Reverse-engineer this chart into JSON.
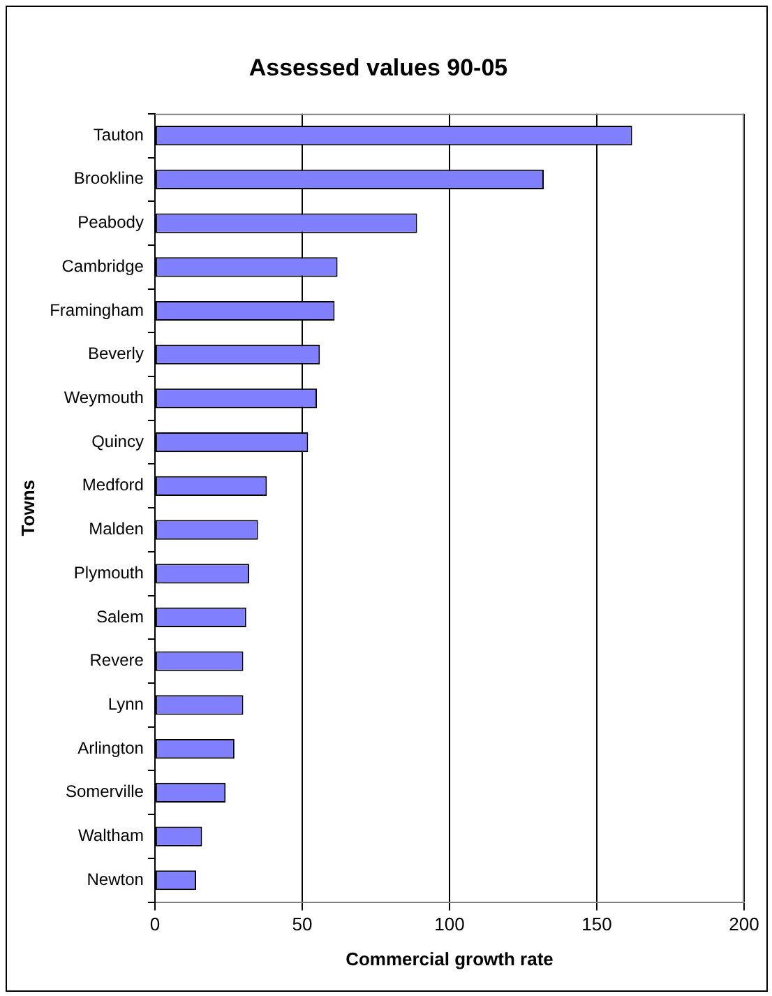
{
  "chart_data": {
    "type": "bar",
    "orientation": "horizontal",
    "title": "Assessed values 90-05",
    "xlabel": "Commercial growth rate",
    "ylabel": "Towns",
    "categories": [
      "Tauton",
      "Brookline",
      "Peabody",
      "Cambridge",
      "Framingham",
      "Beverly",
      "Weymouth",
      "Quincy",
      "Medford",
      "Malden",
      "Plymouth",
      "Salem",
      "Revere",
      "Lynn",
      "Arlington",
      "Somerville",
      "Waltham",
      "Newton"
    ],
    "values": [
      162,
      132,
      89,
      62,
      61,
      56,
      55,
      52,
      38,
      35,
      32,
      31,
      30,
      30,
      27,
      24,
      16,
      14
    ],
    "color": "#8080ff",
    "xlim": [
      0,
      200
    ],
    "xticks": [
      0,
      50,
      100,
      150,
      200
    ],
    "grid": "x",
    "legend": false
  }
}
